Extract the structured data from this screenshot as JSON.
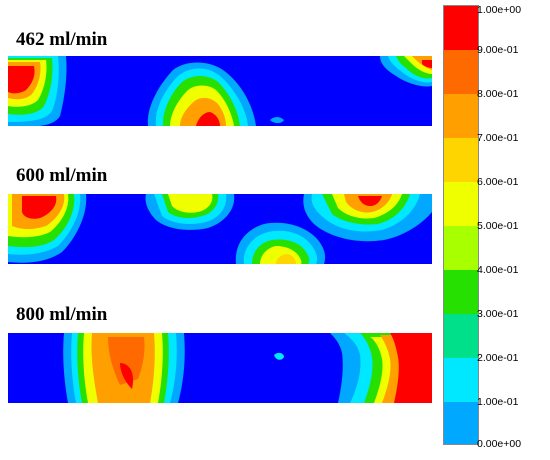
{
  "panels": [
    {
      "label": "462 ml/min"
    },
    {
      "label": "600 ml/min"
    },
    {
      "label": "800 ml/min"
    }
  ],
  "legend": {
    "ticks": [
      "1.00e+00",
      "9.00e-01",
      "8.00e-01",
      "7.00e-01",
      "6.00e-01",
      "5.00e-01",
      "4.00e-01",
      "3.00e-01",
      "2.00e-01",
      "1.00e-01",
      "0.00e+00"
    ],
    "colors_top_to_bottom": [
      "#ff0000",
      "#ff6a00",
      "#ffa000",
      "#ffd500",
      "#f0ff00",
      "#a8ff00",
      "#25e000",
      "#00e08a",
      "#00e8ff",
      "#00a8ff",
      "#0000ff"
    ]
  },
  "colors": {
    "background_field": "#0000ff"
  }
}
